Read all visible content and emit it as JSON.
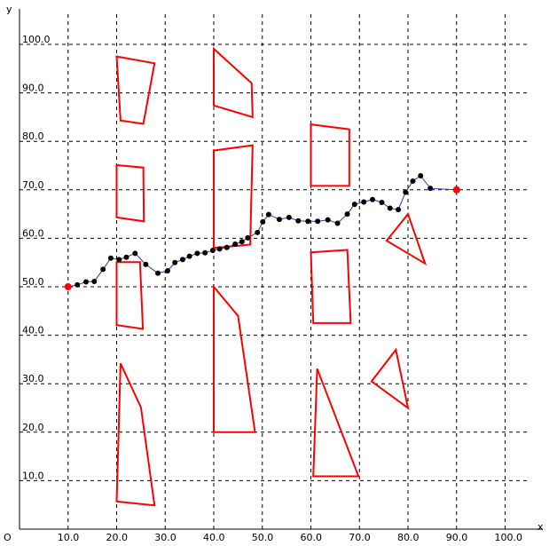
{
  "chart_data": {
    "type": "path-planning-plot",
    "axes": {
      "x_label": "x",
      "y_label": "y",
      "origin_label": "O",
      "xlim": [
        0,
        100
      ],
      "ylim": [
        0,
        100
      ],
      "x_ticks": [
        10,
        20,
        30,
        40,
        50,
        60,
        70,
        80,
        90,
        100
      ],
      "y_ticks": [
        10,
        20,
        30,
        40,
        50,
        60,
        70,
        80,
        90,
        100
      ],
      "x_tick_labels": [
        "10.0",
        "20.0",
        "30.0",
        "40.0",
        "50.0",
        "60.0",
        "70.0",
        "80.0",
        "90.0",
        "100.0"
      ],
      "y_tick_labels": [
        "10.0",
        "20.0",
        "30.0",
        "40.0",
        "50.0",
        "60.0",
        "70.0",
        "80.0",
        "90.0",
        "100.0"
      ],
      "grid": true,
      "grid_style": "dashed"
    },
    "colors": {
      "obstacle": "#ff0000",
      "path_line": "#3030c0",
      "path_node": "#000000",
      "endpoint": "#ff0000"
    },
    "obstacles": [
      [
        [
          20.0,
          97.5
        ],
        [
          27.8,
          96.1
        ],
        [
          25.5,
          83.6
        ],
        [
          20.8,
          84.3
        ]
      ],
      [
        [
          20.0,
          75.1
        ],
        [
          25.5,
          74.6
        ],
        [
          25.6,
          63.5
        ],
        [
          20.0,
          64.3
        ]
      ],
      [
        [
          20.0,
          55.1
        ],
        [
          24.8,
          55.1
        ],
        [
          25.4,
          41.3
        ],
        [
          20.0,
          42.1
        ]
      ],
      [
        [
          20.8,
          34.2
        ],
        [
          25.0,
          25.1
        ],
        [
          27.8,
          4.9
        ],
        [
          20.0,
          5.7
        ]
      ],
      [
        [
          40.0,
          99.1
        ],
        [
          47.8,
          92.0
        ],
        [
          48.0,
          85.0
        ],
        [
          40.0,
          87.4
        ]
      ],
      [
        [
          40.0,
          78.1
        ],
        [
          48.0,
          79.2
        ],
        [
          47.5,
          58.7
        ],
        [
          40.0,
          58.0
        ]
      ],
      [
        [
          40.0,
          50.0
        ],
        [
          45.0,
          44.0
        ],
        [
          48.5,
          20.0
        ],
        [
          40.0,
          20.0
        ]
      ],
      [
        [
          60.0,
          83.5
        ],
        [
          67.9,
          82.5
        ],
        [
          67.9,
          70.8
        ],
        [
          60.0,
          70.8
        ]
      ],
      [
        [
          60.0,
          57.1
        ],
        [
          67.5,
          57.6
        ],
        [
          68.2,
          42.5
        ],
        [
          60.5,
          42.5
        ]
      ],
      [
        [
          61.3,
          33.1
        ],
        [
          69.8,
          10.9
        ],
        [
          60.5,
          10.9
        ]
      ],
      [
        [
          75.6,
          59.5
        ],
        [
          80.0,
          65.0
        ],
        [
          83.5,
          54.8
        ]
      ],
      [
        [
          72.5,
          30.5
        ],
        [
          77.5,
          37.0
        ],
        [
          80.0,
          25.0
        ]
      ]
    ],
    "path": [
      [
        10.0,
        50.0
      ],
      [
        11.9,
        50.4
      ],
      [
        13.7,
        51.0
      ],
      [
        15.4,
        51.1
      ],
      [
        17.2,
        53.6
      ],
      [
        18.8,
        55.9
      ],
      [
        20.5,
        55.6
      ],
      [
        22.0,
        56.1
      ],
      [
        23.8,
        56.9
      ],
      [
        26.0,
        54.6
      ],
      [
        28.5,
        52.8
      ],
      [
        30.5,
        53.3
      ],
      [
        32.0,
        55.0
      ],
      [
        33.6,
        55.6
      ],
      [
        35.0,
        56.3
      ],
      [
        36.6,
        56.9
      ],
      [
        38.2,
        57.0
      ],
      [
        39.8,
        57.5
      ],
      [
        41.2,
        57.8
      ],
      [
        42.7,
        58.1
      ],
      [
        44.4,
        58.8
      ],
      [
        45.8,
        59.3
      ],
      [
        47.0,
        60.1
      ],
      [
        49.0,
        61.2
      ],
      [
        50.1,
        63.4
      ],
      [
        51.3,
        64.9
      ],
      [
        53.5,
        63.9
      ],
      [
        55.5,
        64.3
      ],
      [
        57.4,
        63.6
      ],
      [
        59.4,
        63.5
      ],
      [
        61.4,
        63.5
      ],
      [
        63.5,
        63.8
      ],
      [
        65.5,
        63.1
      ],
      [
        67.5,
        65.0
      ],
      [
        69.0,
        67.0
      ],
      [
        70.9,
        67.5
      ],
      [
        72.7,
        68.0
      ],
      [
        74.6,
        67.4
      ],
      [
        76.3,
        66.2
      ],
      [
        78.0,
        65.9
      ],
      [
        79.5,
        69.5
      ],
      [
        81.0,
        71.8
      ],
      [
        82.6,
        72.9
      ],
      [
        84.6,
        70.3
      ],
      [
        90.0,
        70.0
      ]
    ],
    "start": [
      10.0,
      50.0
    ],
    "goal": [
      90.0,
      70.0
    ]
  }
}
